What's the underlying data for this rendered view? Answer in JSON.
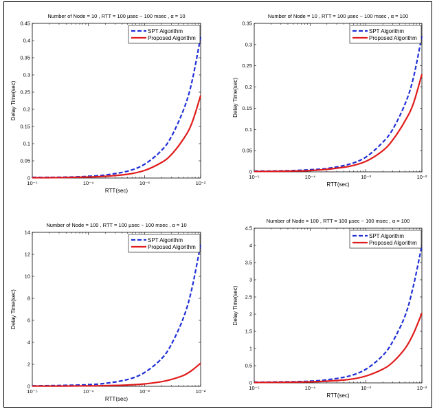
{
  "colors": {
    "spt": "#1f2fd6",
    "proposed": "#e01b1b",
    "axis": "#000000"
  },
  "chart_data": [
    {
      "type": "line",
      "title": "Number of Node = 10 , RTT = 100 µsec ~ 100 msec , α = 10",
      "xlabel": "RTT(sec)",
      "ylabel": "Delay Time(sec)",
      "xscale": "log",
      "xlim": [
        1e-05,
        0.01
      ],
      "ylim": [
        0,
        0.45
      ],
      "xticks": [
        1e-05,
        0.0001,
        0.001,
        0.01
      ],
      "xtick_labels": [
        "10⁻⁵",
        "10⁻⁴",
        "10⁻³",
        "10⁻²"
      ],
      "yticks": [
        0,
        0.05,
        0.1,
        0.15,
        0.2,
        0.25,
        0.3,
        0.35,
        0.4,
        0.45
      ],
      "ytick_labels": [
        "0",
        "0.05",
        "0.1",
        "0.15",
        "0.2",
        "0.25",
        "0.3",
        "0.35",
        "0.4",
        "0.45"
      ],
      "legend": "top-right",
      "x": [
        1e-05,
        2e-05,
        5e-05,
        0.0001,
        0.0002,
        0.0005,
        0.001,
        0.002,
        0.003,
        0.005,
        0.007,
        0.01
      ],
      "series": [
        {
          "name": "SPT Algorithm",
          "style": "dashed",
          "values": [
            0.002,
            0.002,
            0.003,
            0.005,
            0.009,
            0.02,
            0.04,
            0.08,
            0.12,
            0.2,
            0.28,
            0.41
          ]
        },
        {
          "name": "Proposed Algorithm",
          "style": "solid",
          "values": [
            0.001,
            0.001,
            0.002,
            0.003,
            0.005,
            0.011,
            0.022,
            0.045,
            0.068,
            0.115,
            0.16,
            0.24
          ]
        }
      ]
    },
    {
      "type": "line",
      "title": "Number of Node = 10 , RTT = 100 µsec ~ 100 msec , α = 100",
      "xlabel": "RTT(sec)",
      "ylabel": "Delay Time(sec)",
      "xscale": "log",
      "xlim": [
        1e-05,
        0.01
      ],
      "ylim": [
        0,
        0.35
      ],
      "xticks": [
        1e-05,
        0.0001,
        0.001,
        0.01
      ],
      "xtick_labels": [
        "10⁻⁵",
        "10⁻⁴",
        "10⁻³",
        "10⁻²"
      ],
      "yticks": [
        0,
        0.05,
        0.1,
        0.15,
        0.2,
        0.25,
        0.3,
        0.35
      ],
      "ytick_labels": [
        "0",
        "0.05",
        "0.1",
        "0.15",
        "0.2",
        "0.25",
        "0.3",
        "0.35"
      ],
      "legend": "top-right",
      "x": [
        1e-05,
        2e-05,
        5e-05,
        0.0001,
        0.0002,
        0.0005,
        0.001,
        0.002,
        0.003,
        0.005,
        0.007,
        0.01
      ],
      "series": [
        {
          "name": "SPT Algorithm",
          "style": "dashed",
          "values": [
            0.002,
            0.002,
            0.003,
            0.005,
            0.008,
            0.018,
            0.035,
            0.07,
            0.1,
            0.16,
            0.22,
            0.32
          ]
        },
        {
          "name": "Proposed Algorithm",
          "style": "solid",
          "values": [
            0.001,
            0.001,
            0.002,
            0.003,
            0.006,
            0.013,
            0.025,
            0.05,
            0.075,
            0.12,
            0.16,
            0.23
          ]
        }
      ]
    },
    {
      "type": "line",
      "title": "Number of Node = 100 , RTT = 100 µsec ~ 100 msec , α = 10",
      "xlabel": "RTT(sec)",
      "ylabel": "Delay Time(sec)",
      "xscale": "log",
      "xlim": [
        1e-05,
        0.01
      ],
      "ylim": [
        0,
        14
      ],
      "xticks": [
        1e-05,
        0.0001,
        0.001,
        0.01
      ],
      "xtick_labels": [
        "10⁻⁵",
        "10⁻⁴",
        "10⁻³",
        "10⁻²"
      ],
      "yticks": [
        0,
        2,
        4,
        6,
        8,
        10,
        12,
        14
      ],
      "ytick_labels": [
        "0",
        "2",
        "4",
        "6",
        "8",
        "10",
        "12",
        "14"
      ],
      "legend": "top-right",
      "x": [
        1e-05,
        2e-05,
        5e-05,
        0.0001,
        0.0002,
        0.0005,
        0.001,
        0.002,
        0.003,
        0.005,
        0.007,
        0.01
      ],
      "series": [
        {
          "name": "SPT Algorithm",
          "style": "dashed",
          "values": [
            0.05,
            0.06,
            0.1,
            0.15,
            0.27,
            0.62,
            1.25,
            2.5,
            3.8,
            6.3,
            8.9,
            12.9
          ]
        },
        {
          "name": "Proposed Algorithm",
          "style": "solid",
          "values": [
            0.02,
            0.02,
            0.03,
            0.04,
            0.06,
            0.12,
            0.22,
            0.42,
            0.62,
            1.0,
            1.45,
            2.1
          ]
        }
      ]
    },
    {
      "type": "line",
      "title": "Number of Node = 100 , RTT = 100 µsec ~ 100 msec , α = 100",
      "xlabel": "RTT(sec)",
      "ylabel": "Delay Time(sec)",
      "xscale": "log",
      "xlim": [
        1e-05,
        0.01
      ],
      "ylim": [
        0,
        4.5
      ],
      "xticks": [
        1e-05,
        0.0001,
        0.001,
        0.01
      ],
      "xtick_labels": [
        "10⁻⁵",
        "10⁻⁴",
        "10⁻³",
        "10⁻²"
      ],
      "yticks": [
        0,
        0.5,
        1,
        1.5,
        2,
        2.5,
        3,
        3.5,
        4,
        4.5
      ],
      "ytick_labels": [
        "0",
        "0.5",
        "1",
        "1.5",
        "2",
        "2.5",
        "3",
        "3.5",
        "4",
        "4.5"
      ],
      "legend": "top-right",
      "x": [
        1e-05,
        2e-05,
        5e-05,
        0.0001,
        0.0002,
        0.0005,
        0.001,
        0.002,
        0.003,
        0.005,
        0.007,
        0.01
      ],
      "series": [
        {
          "name": "SPT Algorithm",
          "style": "dashed",
          "values": [
            0.02,
            0.025,
            0.035,
            0.05,
            0.09,
            0.2,
            0.4,
            0.8,
            1.2,
            1.95,
            2.8,
            4.0
          ]
        },
        {
          "name": "Proposed Algorithm",
          "style": "solid",
          "values": [
            0.01,
            0.015,
            0.02,
            0.03,
            0.05,
            0.1,
            0.2,
            0.4,
            0.6,
            1.0,
            1.42,
            2.03
          ]
        }
      ]
    }
  ]
}
